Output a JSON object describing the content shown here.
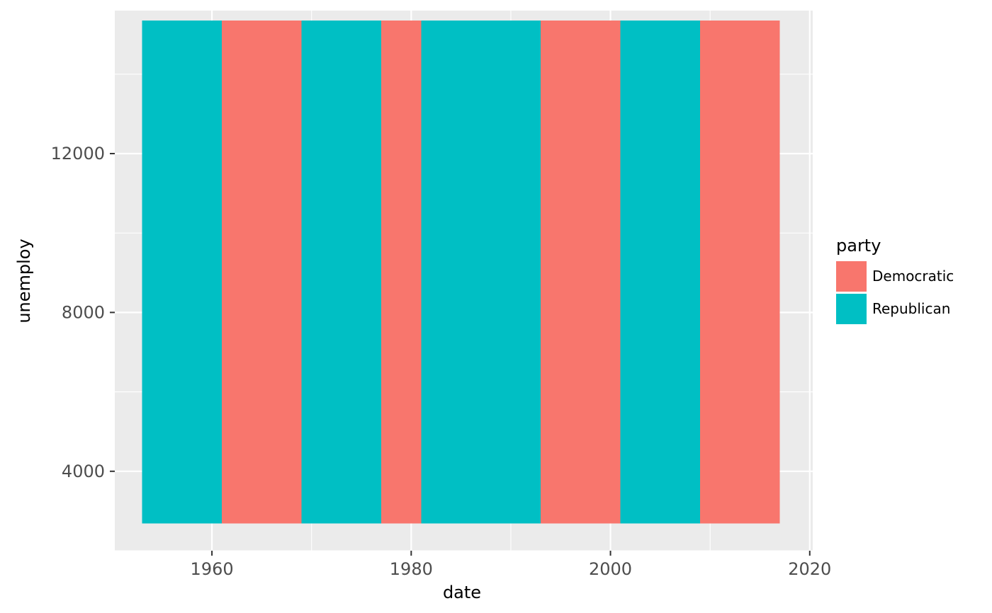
{
  "chart_data": {
    "type": "bar",
    "title": "",
    "xlabel": "date",
    "ylabel": "unemploy",
    "xlim": [
      1950.25,
      2020.3
    ],
    "ylim": [
      2000,
      15600
    ],
    "x_ticks": [
      1960,
      1980,
      2000,
      2020
    ],
    "y_ticks": [
      4000,
      8000,
      12000
    ],
    "x_tick_labels": [
      "1960",
      "1980",
      "2000",
      "2020"
    ],
    "y_tick_labels": [
      "4000",
      "8000",
      "12000"
    ],
    "grid": true,
    "legend": {
      "title": "party",
      "position": "right",
      "entries": [
        {
          "label": "Democratic",
          "color": "#F8766D"
        },
        {
          "label": "Republican",
          "color": "#00BFC4"
        }
      ]
    },
    "rect_ymin": 2685,
    "rect_ymax": 15352,
    "series": [
      {
        "name": "Republican",
        "color": "#00BFC4",
        "intervals": [
          [
            1953,
            1961
          ],
          [
            1969,
            1977
          ],
          [
            1981,
            1993
          ],
          [
            2001,
            2009
          ]
        ]
      },
      {
        "name": "Democratic",
        "color": "#F8766D",
        "intervals": [
          [
            1961,
            1969
          ],
          [
            1977,
            1981
          ],
          [
            1993,
            2001
          ],
          [
            2009,
            2017
          ]
        ]
      }
    ]
  }
}
